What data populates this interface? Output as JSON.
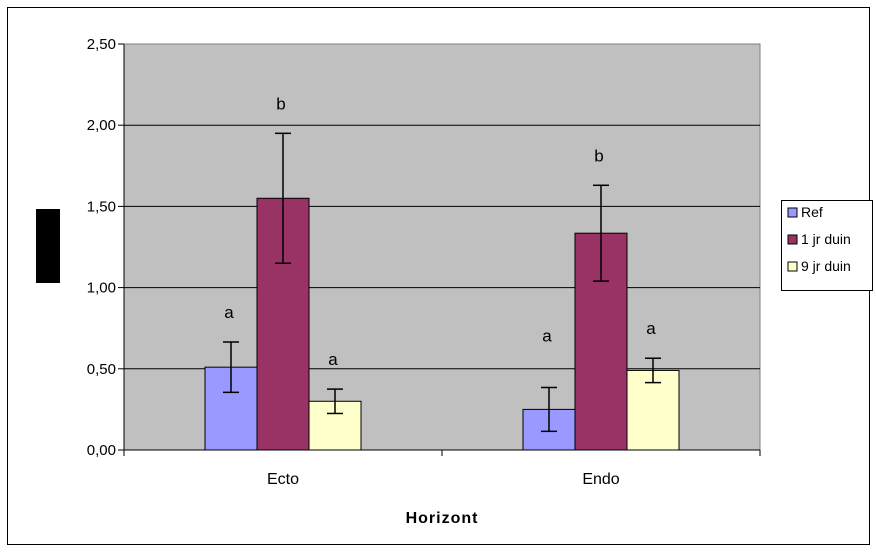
{
  "chart_data": {
    "type": "bar",
    "xlabel": "Horizont",
    "ylabel": "",
    "ylim": [
      0,
      2.5
    ],
    "yticks": [
      "0,00",
      "0,50",
      "1,00",
      "1,50",
      "2,00",
      "2,50"
    ],
    "categories": [
      "Ecto",
      "Endo"
    ],
    "series": [
      {
        "name": "Ref",
        "color": "#9999ff",
        "values": [
          0.51,
          0.25
        ],
        "errors": [
          0.155,
          0.135
        ],
        "letters": [
          "a",
          "a"
        ]
      },
      {
        "name": "1 jr duin",
        "color": "#993366",
        "values": [
          1.55,
          1.335
        ],
        "errors": [
          0.4,
          0.295
        ],
        "letters": [
          "b",
          "b"
        ]
      },
      {
        "name": "9 jr duin",
        "color": "#ffffcc",
        "values": [
          0.3,
          0.49
        ],
        "errors": [
          0.075,
          0.075
        ],
        "letters": [
          "a",
          "a"
        ]
      }
    ],
    "plot_background": "#c0c0c0",
    "grid": true,
    "legend_position": "right"
  }
}
